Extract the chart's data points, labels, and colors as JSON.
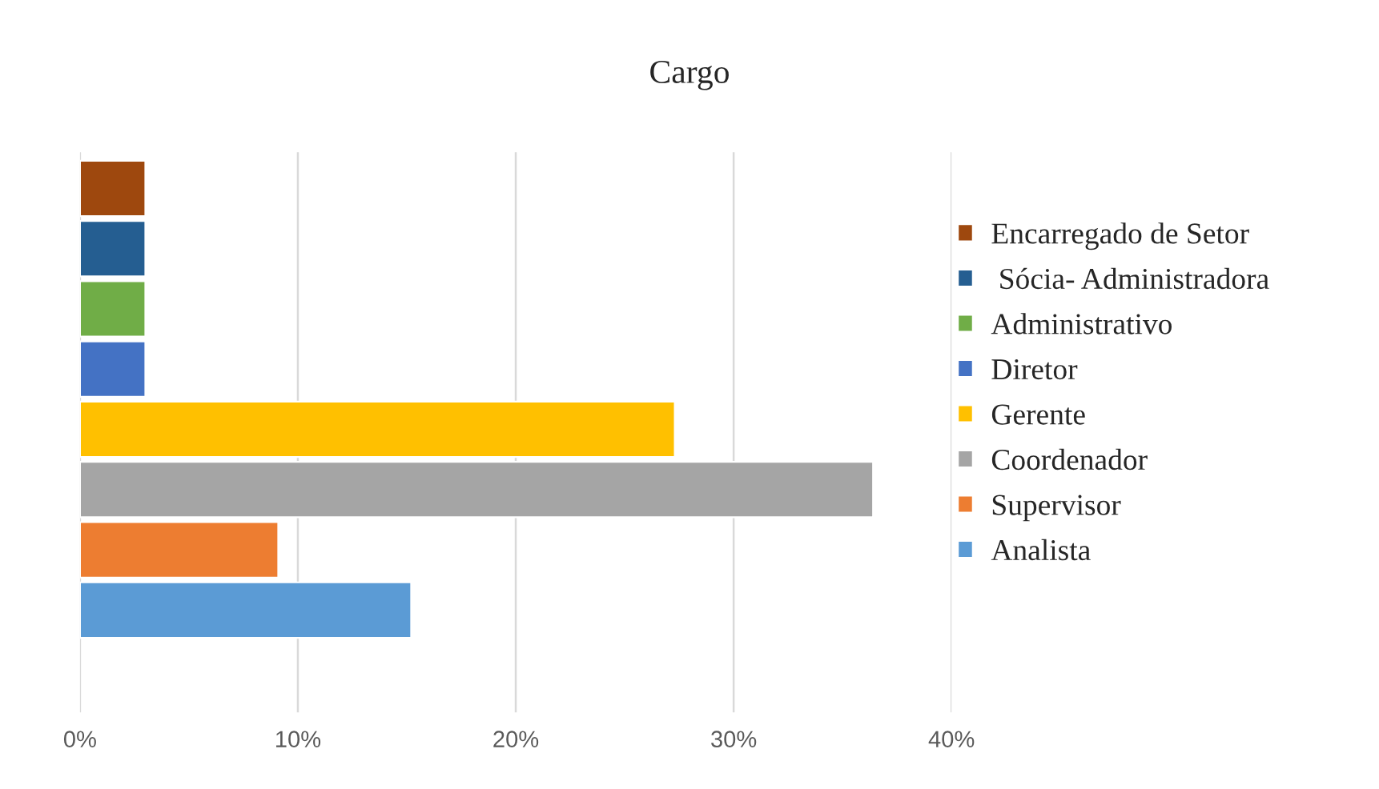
{
  "chart_data": {
    "type": "bar",
    "orientation": "horizontal",
    "title": "Cargo",
    "categories": [
      null
    ],
    "series": [
      {
        "name": "Analista",
        "color": "#5b9bd5",
        "values": [
          15.2
        ]
      },
      {
        "name": "Supervisor",
        "color": "#ed7d31",
        "values": [
          9.1
        ]
      },
      {
        "name": "Coordenador",
        "color": "#a5a5a5",
        "values": [
          36.4
        ]
      },
      {
        "name": "Gerente",
        "color": "#ffc000",
        "values": [
          27.3
        ]
      },
      {
        "name": "Diretor",
        "color": "#4472c4",
        "values": [
          3.0
        ]
      },
      {
        "name": "Administrativo",
        "color": "#70ad47",
        "values": [
          3.0
        ]
      },
      {
        "name": " Sócia- Administradora",
        "color": "#255e91",
        "values": [
          3.0
        ]
      },
      {
        "name": "Encarregado de Setor",
        "color": "#9e480e",
        "values": [
          3.0
        ]
      }
    ],
    "xlim": [
      0,
      40
    ],
    "xticks": [
      {
        "value": 0,
        "label": "0%"
      },
      {
        "value": 10,
        "label": "10%"
      },
      {
        "value": 20,
        "label": "20%"
      },
      {
        "value": 30,
        "label": "30%"
      },
      {
        "value": 40,
        "label": "40%"
      }
    ],
    "grid": "x",
    "legend": "right",
    "tick_labels": "x"
  }
}
